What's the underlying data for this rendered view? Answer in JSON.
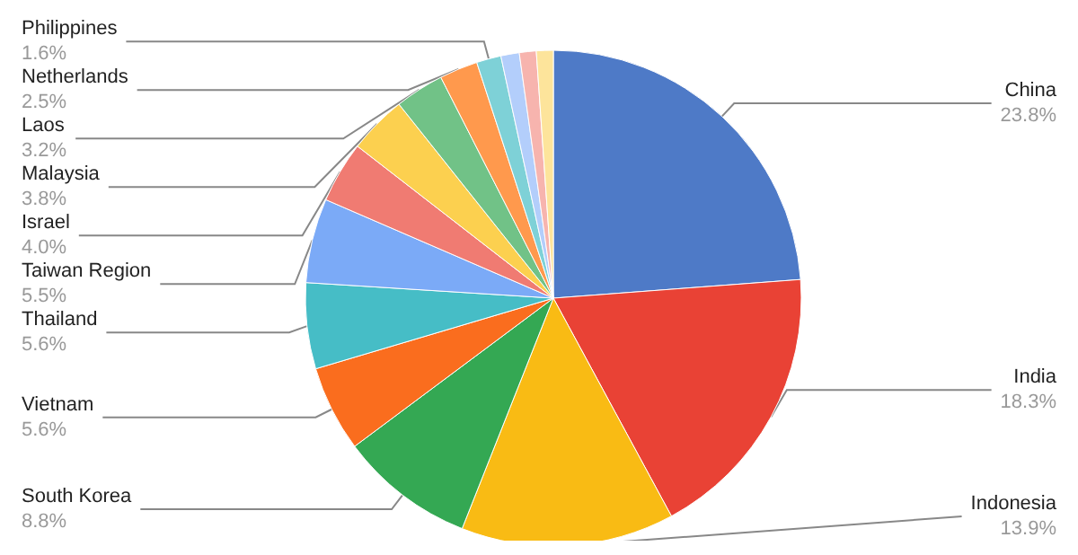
{
  "chart_data": {
    "type": "pie",
    "categories": [
      "China",
      "India",
      "Indonesia",
      "South Korea",
      "Vietnam",
      "Thailand",
      "Taiwan Region",
      "Israel",
      "Malaysia",
      "Laos",
      "Netherlands",
      "Philippines",
      null,
      null,
      null
    ],
    "values": [
      23.8,
      18.3,
      13.9,
      8.8,
      5.6,
      5.6,
      5.5,
      4.0,
      3.8,
      3.2,
      2.5,
      1.6,
      1.2,
      1.1,
      1.1
    ],
    "value_labels": [
      "23.8%",
      "18.3%",
      "13.9%",
      "8.8%",
      "5.6%",
      "5.6%",
      "5.5%",
      "4.0%",
      "3.8%",
      "3.2%",
      "2.5%",
      "1.6%",
      null,
      null,
      null
    ],
    "colors": [
      "#4e7ac7",
      "#e94235",
      "#f9bb14",
      "#34a853",
      "#fa6d1e",
      "#46bdc6",
      "#7baaf7",
      "#f07b72",
      "#fcd04f",
      "#71c287",
      "#ff994d",
      "#7ed1d7",
      "#b3cefb",
      "#f7b4ae",
      "#fde49b"
    ],
    "legend": false
  }
}
